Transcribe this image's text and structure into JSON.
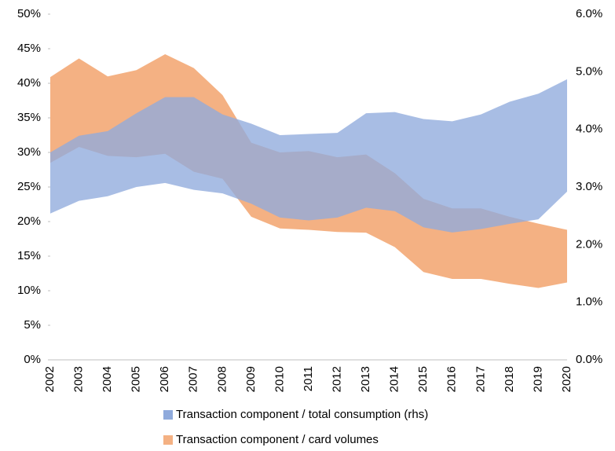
{
  "chart_data": {
    "type": "range-area",
    "categories": [
      "2002",
      "2003",
      "2004",
      "2005",
      "2006",
      "2007",
      "2008",
      "2009",
      "2010",
      "2011",
      "2012",
      "2013",
      "2014",
      "2015",
      "2016",
      "2017",
      "2018",
      "2019",
      "2020"
    ],
    "ylim": [
      0,
      50
    ],
    "yticks": [
      {
        "value": 0,
        "label": "0%"
      },
      {
        "value": 5,
        "label": "5%"
      },
      {
        "value": 10,
        "label": "10%"
      },
      {
        "value": 15,
        "label": "15%"
      },
      {
        "value": 20,
        "label": "20%"
      },
      {
        "value": 25,
        "label": "25%"
      },
      {
        "value": 30,
        "label": "30%"
      },
      {
        "value": 35,
        "label": "35%"
      },
      {
        "value": 40,
        "label": "40%"
      },
      {
        "value": 45,
        "label": "45%"
      },
      {
        "value": 50,
        "label": "50%"
      }
    ],
    "y2lim": [
      0,
      6
    ],
    "y2ticks": [
      {
        "value": 0,
        "label": "0.0%"
      },
      {
        "value": 1,
        "label": "1.0%"
      },
      {
        "value": 2,
        "label": "2.0%"
      },
      {
        "value": 3,
        "label": "3.0%"
      },
      {
        "value": 4,
        "label": "4.0%"
      },
      {
        "value": 5,
        "label": "5.0%"
      },
      {
        "value": 6,
        "label": "6.0%"
      }
    ],
    "series": [
      {
        "name": "Transaction component / card volumes",
        "color": "#f4b183",
        "axis": "y",
        "low": [
          28.5,
          30.8,
          29.5,
          29.3,
          29.8,
          27.2,
          26.2,
          20.7,
          19.0,
          18.8,
          18.5,
          18.4,
          16.3,
          12.7,
          11.7,
          11.7,
          11.0,
          10.4,
          11.2
        ],
        "high": [
          40.9,
          43.6,
          41.0,
          41.9,
          44.2,
          42.2,
          38.3,
          31.4,
          30.0,
          30.2,
          29.3,
          29.7,
          27.0,
          23.3,
          21.9,
          21.9,
          20.7,
          19.7,
          18.8
        ]
      },
      {
        "name": "Transaction component / total consumption (rhs)",
        "color": "#8faadc",
        "axis": "y2",
        "low": [
          2.54,
          2.76,
          2.84,
          3.0,
          3.07,
          2.95,
          2.89,
          2.71,
          2.47,
          2.42,
          2.47,
          2.64,
          2.58,
          2.3,
          2.21,
          2.27,
          2.36,
          2.44,
          2.92
        ],
        "high": [
          3.6,
          3.89,
          3.97,
          4.28,
          4.56,
          4.56,
          4.26,
          4.1,
          3.9,
          3.92,
          3.94,
          4.28,
          4.3,
          4.18,
          4.14,
          4.26,
          4.48,
          4.62,
          4.87
        ]
      }
    ],
    "legend_order": [
      1,
      0
    ]
  }
}
